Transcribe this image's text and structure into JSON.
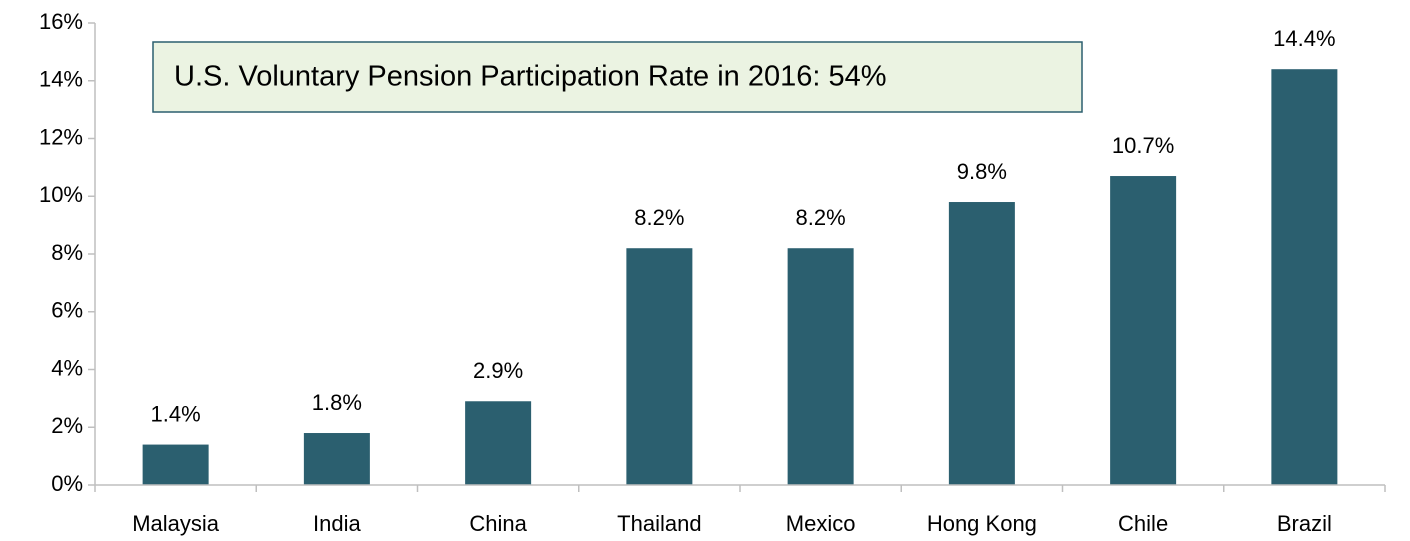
{
  "chart_data": {
    "type": "bar",
    "annotation": "U.S. Voluntary Pension Participation Rate in 2016:  54%",
    "categories": [
      "Malaysia",
      "India",
      "China",
      "Thailand",
      "Mexico",
      "Hong Kong",
      "Chile",
      "Brazil"
    ],
    "values": [
      1.4,
      1.8,
      2.9,
      8.2,
      8.2,
      9.8,
      10.7,
      14.4
    ],
    "value_labels": [
      "1.4%",
      "1.8%",
      "2.9%",
      "8.2%",
      "8.2%",
      "9.8%",
      "10.7%",
      "14.4%"
    ],
    "color": "#2b5f6f",
    "ylim": [
      0,
      16
    ],
    "yticks": [
      {
        "value": 0,
        "label": "0%"
      },
      {
        "value": 2,
        "label": "2%"
      },
      {
        "value": 4,
        "label": "4%"
      },
      {
        "value": 6,
        "label": "6%"
      },
      {
        "value": 8,
        "label": "8%"
      },
      {
        "value": 10,
        "label": "10%"
      },
      {
        "value": 12,
        "label": "12%"
      },
      {
        "value": 14,
        "label": "14%"
      },
      {
        "value": 16,
        "label": "16%"
      }
    ],
    "grid": false
  }
}
